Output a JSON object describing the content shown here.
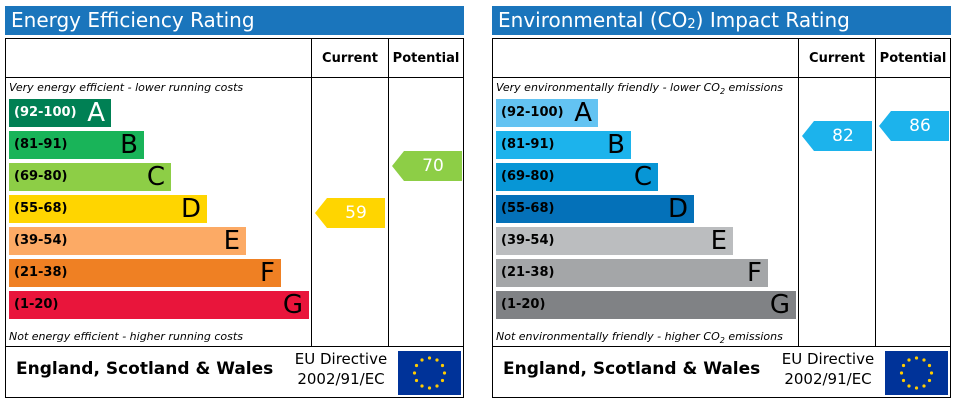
{
  "energy": {
    "title": "Energy Efficiency Rating",
    "headers": {
      "current": "Current",
      "potential": "Potential"
    },
    "caption_top": "Very energy efficient - lower running costs",
    "caption_bottom": "Not energy efficient - higher running costs",
    "bands": [
      {
        "range": "(92-100)",
        "letter": "A",
        "color": "#008054"
      },
      {
        "range": "(81-91)",
        "letter": "B",
        "color": "#19b459"
      },
      {
        "range": "(69-80)",
        "letter": "C",
        "color": "#8dce46"
      },
      {
        "range": "(55-68)",
        "letter": "D",
        "color": "#ffd500"
      },
      {
        "range": "(39-54)",
        "letter": "E",
        "color": "#fcaa65"
      },
      {
        "range": "(21-38)",
        "letter": "F",
        "color": "#ef8023"
      },
      {
        "range": "(1-20)",
        "letter": "G",
        "color": "#e9153b"
      }
    ],
    "current_rating": "59",
    "current_color": "#ffd500",
    "potential_rating": "70",
    "potential_color": "#8dce46",
    "country": "England, Scotland & Wales",
    "directive_line1": "EU Directive",
    "directive_line2": "2002/91/EC"
  },
  "environment": {
    "title_pre": "Environmental (CO",
    "title_sub": "2",
    "title_post": ") Impact Rating",
    "headers": {
      "current": "Current",
      "potential": "Potential"
    },
    "caption_top_pre": "Very environmentally friendly - lower CO",
    "caption_top_sub": "2",
    "caption_top_post": " emissions",
    "caption_bottom_pre": "Not environmentally friendly - higher CO",
    "caption_bottom_sub": "2",
    "caption_bottom_post": " emissions",
    "bands": [
      {
        "range": "(92-100)",
        "letter": "A",
        "color": "#63c3f2"
      },
      {
        "range": "(81-91)",
        "letter": "B",
        "color": "#1cb3ec"
      },
      {
        "range": "(69-80)",
        "letter": "C",
        "color": "#0796d6"
      },
      {
        "range": "(55-68)",
        "letter": "D",
        "color": "#0471b9"
      },
      {
        "range": "(39-54)",
        "letter": "E",
        "color": "#bbbdbf"
      },
      {
        "range": "(21-38)",
        "letter": "F",
        "color": "#a4a6a8"
      },
      {
        "range": "(1-20)",
        "letter": "G",
        "color": "#808285"
      }
    ],
    "current_rating": "82",
    "current_color": "#1cb3ec",
    "potential_rating": "86",
    "potential_color": "#1cb3ec",
    "country": "England, Scotland & Wales",
    "directive_line1": "EU Directive",
    "directive_line2": "2002/91/EC"
  }
}
